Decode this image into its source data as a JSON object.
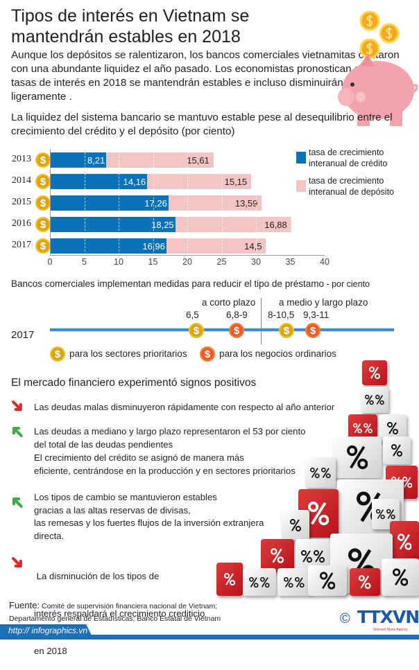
{
  "header": {
    "title": "Tipos de interés en Vietnam se mantendrán estables en 2018",
    "intro": "Aunque los depósitos se ralentizaron, los bancos comerciales vietnamitas contaron con una abundante liquidez el año pasado. Los economistas pronostican que las tasas de interés en 2018 se mantendrán estables e incluso disminuirán ligeramente ."
  },
  "chart_data": {
    "type": "bar",
    "orientation": "horizontal",
    "stacked": true,
    "title": "La liquidez del sistema bancario se mantuvo estable pese al desequilibrio entre el crecimiento del crédito y el depósito (por ciento)",
    "categories": [
      "2013",
      "2014",
      "2015",
      "2016",
      "2017"
    ],
    "series": [
      {
        "name": "tasa de crecimiento interanual de crédito",
        "values": [
          8.21,
          14.16,
          17.26,
          18.25,
          16.96
        ],
        "labels": [
          "8,21",
          "14,16",
          "17,26",
          "18,25",
          "16,96"
        ],
        "color": "#0a72b8"
      },
      {
        "name": "tasa de crecimiento interanual de depósito",
        "values": [
          15.61,
          15.15,
          13.59,
          16.88,
          14.5
        ],
        "labels": [
          "15,61",
          "15,15",
          "13,59",
          "16,88",
          "14,5"
        ],
        "color": "#f2c4c4"
      }
    ],
    "xlim": [
      0,
      40
    ],
    "xticks": [
      "0",
      "5",
      "10",
      "15",
      "20",
      "25",
      "30",
      "35",
      "40"
    ],
    "grid": true,
    "legend": "right"
  },
  "lending": {
    "title": "Bancos comerciales implementan medidas para reducir el tipo de préstamo",
    "unit": " - por ciento",
    "year": "2017",
    "short_label": "a corto plazo",
    "long_label": "a medio y largo plazo",
    "values": [
      "6,5",
      "6,8-9",
      "8-10,5",
      "9,3-11"
    ],
    "legend_priority": "para los sectores prioritarios",
    "legend_ordinary": "para los negocios ordinarios",
    "coin_symbol": "$",
    "colors": {
      "priority": "#d9a514",
      "ordinary": "#ef5a28"
    }
  },
  "market": {
    "title": "El mercado financiero experimentó signos positivos",
    "items": [
      {
        "trend": "down",
        "lines": [
          "Las deudas malas disminuyeron rápidamente con respecto al año anterior"
        ]
      },
      {
        "trend": "up",
        "lines": [
          "Las deudas a mediano y largo plazo representaron el 53 por ciento",
          "del total de las deudas pendientes",
          "El crecimiento del crédito se asignó de manera más",
          "eficiente, centrándose en la producción y en sectores prioritarios"
        ]
      },
      {
        "trend": "up",
        "lines": [
          "Los tipos de cambio se mantuvieron estables",
          "gracias a las altas reservas de divisas,",
          "las remesas y los fuertes flujos de la inversión extranjera",
          "directa."
        ]
      },
      {
        "trend": "down",
        "lines": [
          " La disminución de los tipos de",
          "interés respaldará el crecimiento crediticio",
          "en 2018"
        ]
      }
    ]
  },
  "footer": {
    "source_label": "Fuente:",
    "source_line1": "Comité de supervisión financiera nacional de Vietnam;",
    "source_line2": "Departamento general de Estadísticas; Banco Estatal de Vietnam",
    "url": "http:// infographics.vn",
    "copyright": "©",
    "logo": "TTXVN",
    "logo_sub": "Vietnam News Agency"
  }
}
